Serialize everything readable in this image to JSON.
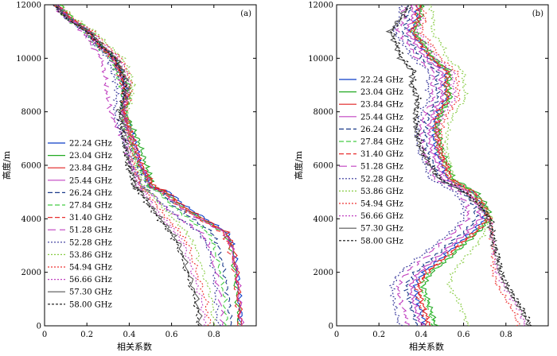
{
  "chart_data": [
    {
      "type": "line",
      "panel_label": "(a)",
      "xlabel": "相关系数",
      "ylabel": "高度/m",
      "xlim": [
        0,
        1
      ],
      "ylim": [
        0,
        12000
      ],
      "xticks": [
        0,
        0.2,
        0.4,
        0.6,
        0.8
      ],
      "yticks": [
        0,
        2000,
        4000,
        6000,
        8000,
        10000,
        12000
      ],
      "grid": false,
      "legend_position": "left-middle",
      "y": [
        0,
        1000,
        2000,
        3000,
        3500,
        4000,
        4500,
        5000,
        5200,
        5600,
        6000,
        6500,
        7000,
        7500,
        8000,
        8500,
        9000,
        9500,
        10000,
        10500,
        11000,
        11500,
        12000
      ],
      "series": [
        {
          "name": "22.24 GHz",
          "color": "#0a3cc8",
          "dash": "solid",
          "values": [
            0.93,
            0.92,
            0.91,
            0.89,
            0.86,
            0.76,
            0.66,
            0.59,
            0.5,
            0.48,
            0.45,
            0.44,
            0.42,
            0.4,
            0.37,
            0.38,
            0.38,
            0.36,
            0.33,
            0.26,
            0.21,
            0.12,
            0.06
          ]
        },
        {
          "name": "23.04 GHz",
          "color": "#22aa22",
          "dash": "solid",
          "values": [
            0.92,
            0.91,
            0.9,
            0.88,
            0.85,
            0.74,
            0.64,
            0.57,
            0.51,
            0.5,
            0.48,
            0.46,
            0.44,
            0.41,
            0.38,
            0.4,
            0.4,
            0.37,
            0.34,
            0.27,
            0.22,
            0.13,
            0.07
          ]
        },
        {
          "name": "23.84 GHz",
          "color": "#e02020",
          "dash": "solid",
          "values": [
            0.93,
            0.92,
            0.91,
            0.89,
            0.86,
            0.75,
            0.65,
            0.58,
            0.52,
            0.49,
            0.46,
            0.44,
            0.42,
            0.4,
            0.37,
            0.39,
            0.38,
            0.36,
            0.33,
            0.26,
            0.21,
            0.12,
            0.06
          ]
        },
        {
          "name": "25.44 GHz",
          "color": "#c040c0",
          "dash": "solid",
          "values": [
            0.93,
            0.92,
            0.91,
            0.88,
            0.85,
            0.73,
            0.63,
            0.56,
            0.5,
            0.48,
            0.45,
            0.43,
            0.41,
            0.39,
            0.37,
            0.38,
            0.37,
            0.35,
            0.32,
            0.25,
            0.2,
            0.11,
            0.05
          ]
        },
        {
          "name": "26.24 GHz",
          "color": "#1a3a8a",
          "dash": "6,3",
          "values": [
            0.88,
            0.87,
            0.85,
            0.82,
            0.79,
            0.7,
            0.61,
            0.55,
            0.49,
            0.47,
            0.44,
            0.42,
            0.4,
            0.38,
            0.36,
            0.37,
            0.37,
            0.35,
            0.32,
            0.25,
            0.2,
            0.11,
            0.05
          ]
        },
        {
          "name": "27.84 GHz",
          "color": "#44cc44",
          "dash": "6,3",
          "values": [
            0.86,
            0.85,
            0.83,
            0.8,
            0.77,
            0.68,
            0.6,
            0.54,
            0.49,
            0.47,
            0.44,
            0.42,
            0.4,
            0.38,
            0.36,
            0.37,
            0.36,
            0.34,
            0.31,
            0.24,
            0.19,
            0.1,
            0.05
          ]
        },
        {
          "name": "31.40 GHz",
          "color": "#e83030",
          "dash": "6,3",
          "values": [
            0.92,
            0.91,
            0.9,
            0.87,
            0.84,
            0.73,
            0.63,
            0.56,
            0.5,
            0.48,
            0.45,
            0.43,
            0.41,
            0.39,
            0.37,
            0.38,
            0.37,
            0.35,
            0.32,
            0.25,
            0.2,
            0.11,
            0.05
          ]
        },
        {
          "name": "51.28 GHz",
          "color": "#c040c0",
          "dash": "10,5",
          "values": [
            0.84,
            0.83,
            0.81,
            0.78,
            0.74,
            0.64,
            0.56,
            0.5,
            0.46,
            0.44,
            0.41,
            0.39,
            0.37,
            0.34,
            0.31,
            0.3,
            0.29,
            0.28,
            0.27,
            0.22,
            0.18,
            0.1,
            0.04
          ]
        },
        {
          "name": "52.28 GHz",
          "color": "#333399",
          "dash": "2,2",
          "values": [
            0.82,
            0.81,
            0.8,
            0.77,
            0.73,
            0.64,
            0.56,
            0.5,
            0.46,
            0.44,
            0.41,
            0.39,
            0.37,
            0.35,
            0.33,
            0.34,
            0.34,
            0.32,
            0.3,
            0.24,
            0.19,
            0.1,
            0.05
          ]
        },
        {
          "name": "53.86 GHz",
          "color": "#88cc44",
          "dash": "2,2",
          "values": [
            0.8,
            0.79,
            0.75,
            0.71,
            0.67,
            0.61,
            0.55,
            0.5,
            0.46,
            0.45,
            0.43,
            0.42,
            0.41,
            0.4,
            0.39,
            0.41,
            0.42,
            0.4,
            0.37,
            0.3,
            0.24,
            0.14,
            0.08
          ]
        },
        {
          "name": "54.94 GHz",
          "color": "#ee3333",
          "dash": "2,2",
          "values": [
            0.78,
            0.76,
            0.72,
            0.68,
            0.64,
            0.58,
            0.53,
            0.48,
            0.45,
            0.44,
            0.42,
            0.41,
            0.4,
            0.39,
            0.38,
            0.4,
            0.41,
            0.39,
            0.36,
            0.29,
            0.23,
            0.13,
            0.07
          ]
        },
        {
          "name": "56.66 GHz",
          "color": "#c040c0",
          "dash": "2,2",
          "values": [
            0.76,
            0.74,
            0.7,
            0.66,
            0.62,
            0.56,
            0.51,
            0.47,
            0.44,
            0.43,
            0.41,
            0.4,
            0.39,
            0.38,
            0.37,
            0.39,
            0.4,
            0.38,
            0.35,
            0.28,
            0.22,
            0.12,
            0.06
          ]
        },
        {
          "name": "57.30 GHz",
          "color": "#555555",
          "dash": "solid",
          "values": [
            0.74,
            0.72,
            0.68,
            0.64,
            0.6,
            0.55,
            0.5,
            0.46,
            0.43,
            0.42,
            0.4,
            0.39,
            0.38,
            0.37,
            0.36,
            0.38,
            0.39,
            0.37,
            0.34,
            0.27,
            0.21,
            0.11,
            0.05
          ]
        },
        {
          "name": "58.00 GHz",
          "color": "#111111",
          "dash": "3,2",
          "values": [
            0.73,
            0.71,
            0.67,
            0.63,
            0.59,
            0.54,
            0.49,
            0.45,
            0.42,
            0.41,
            0.39,
            0.38,
            0.37,
            0.36,
            0.35,
            0.37,
            0.38,
            0.36,
            0.33,
            0.26,
            0.2,
            0.1,
            0.04
          ]
        }
      ]
    },
    {
      "type": "line",
      "panel_label": "(b)",
      "xlabel": "相关系数",
      "ylabel": "高度/m",
      "xlim": [
        0,
        1
      ],
      "ylim": [
        0,
        12000
      ],
      "xticks": [
        0,
        0.2,
        0.4,
        0.6,
        0.8
      ],
      "yticks": [
        0,
        2000,
        4000,
        6000,
        8000,
        10000,
        12000
      ],
      "grid": false,
      "legend_position": "left-middle",
      "y": [
        0,
        500,
        1000,
        1500,
        2000,
        2500,
        3000,
        3500,
        4000,
        4500,
        5000,
        5500,
        6000,
        6500,
        7000,
        7500,
        8000,
        8500,
        9000,
        9500,
        10000,
        10500,
        11000,
        11500,
        12000
      ],
      "series": [
        {
          "name": "22.24 GHz",
          "color": "#0a3cc8",
          "dash": "solid",
          "values": [
            0.42,
            0.4,
            0.38,
            0.37,
            0.41,
            0.49,
            0.56,
            0.64,
            0.7,
            0.69,
            0.64,
            0.52,
            0.5,
            0.47,
            0.46,
            0.46,
            0.48,
            0.52,
            0.51,
            0.52,
            0.44,
            0.4,
            0.35,
            0.38,
            0.38
          ]
        },
        {
          "name": "23.04 GHz",
          "color": "#22aa22",
          "dash": "solid",
          "values": [
            0.47,
            0.45,
            0.43,
            0.41,
            0.45,
            0.53,
            0.6,
            0.67,
            0.73,
            0.71,
            0.66,
            0.55,
            0.53,
            0.5,
            0.49,
            0.48,
            0.5,
            0.54,
            0.53,
            0.54,
            0.46,
            0.42,
            0.37,
            0.4,
            0.4
          ]
        },
        {
          "name": "23.84 GHz",
          "color": "#e02020",
          "dash": "solid",
          "values": [
            0.44,
            0.42,
            0.4,
            0.39,
            0.43,
            0.51,
            0.58,
            0.66,
            0.72,
            0.7,
            0.65,
            0.54,
            0.52,
            0.49,
            0.48,
            0.47,
            0.49,
            0.53,
            0.52,
            0.53,
            0.45,
            0.41,
            0.36,
            0.39,
            0.39
          ]
        },
        {
          "name": "25.44 GHz",
          "color": "#c040c0",
          "dash": "solid",
          "values": [
            0.4,
            0.38,
            0.36,
            0.35,
            0.39,
            0.47,
            0.54,
            0.62,
            0.68,
            0.67,
            0.62,
            0.5,
            0.48,
            0.45,
            0.44,
            0.44,
            0.46,
            0.5,
            0.49,
            0.5,
            0.42,
            0.38,
            0.33,
            0.36,
            0.36
          ]
        },
        {
          "name": "26.24 GHz",
          "color": "#1a3a8a",
          "dash": "6,3",
          "values": [
            0.38,
            0.36,
            0.34,
            0.33,
            0.37,
            0.45,
            0.52,
            0.6,
            0.66,
            0.65,
            0.6,
            0.48,
            0.46,
            0.43,
            0.42,
            0.42,
            0.44,
            0.48,
            0.47,
            0.48,
            0.4,
            0.36,
            0.31,
            0.34,
            0.34
          ]
        },
        {
          "name": "27.84 GHz",
          "color": "#44cc44",
          "dash": "6,3",
          "values": [
            0.46,
            0.44,
            0.42,
            0.4,
            0.44,
            0.52,
            0.59,
            0.66,
            0.71,
            0.69,
            0.64,
            0.53,
            0.51,
            0.48,
            0.47,
            0.47,
            0.49,
            0.53,
            0.52,
            0.53,
            0.45,
            0.41,
            0.36,
            0.39,
            0.39
          ]
        },
        {
          "name": "31.40 GHz",
          "color": "#e83030",
          "dash": "6,3",
          "values": [
            0.43,
            0.41,
            0.39,
            0.38,
            0.42,
            0.5,
            0.57,
            0.65,
            0.71,
            0.69,
            0.64,
            0.53,
            0.51,
            0.48,
            0.47,
            0.46,
            0.48,
            0.52,
            0.51,
            0.52,
            0.44,
            0.4,
            0.35,
            0.38,
            0.38
          ]
        },
        {
          "name": "51.28 GHz",
          "color": "#c040c0",
          "dash": "10,5",
          "values": [
            0.34,
            0.32,
            0.3,
            0.29,
            0.33,
            0.41,
            0.48,
            0.56,
            0.62,
            0.62,
            0.58,
            0.46,
            0.44,
            0.41,
            0.4,
            0.4,
            0.42,
            0.46,
            0.45,
            0.46,
            0.38,
            0.34,
            0.29,
            0.32,
            0.32
          ]
        },
        {
          "name": "52.28 GHz",
          "color": "#333399",
          "dash": "2,2",
          "values": [
            0.3,
            0.28,
            0.27,
            0.26,
            0.3,
            0.38,
            0.46,
            0.54,
            0.6,
            0.6,
            0.56,
            0.44,
            0.42,
            0.39,
            0.38,
            0.38,
            0.4,
            0.44,
            0.43,
            0.44,
            0.36,
            0.32,
            0.27,
            0.3,
            0.3
          ]
        },
        {
          "name": "53.86 GHz",
          "color": "#88cc44",
          "dash": "2,2",
          "values": [
            0.62,
            0.6,
            0.57,
            0.53,
            0.55,
            0.6,
            0.66,
            0.7,
            0.73,
            0.7,
            0.64,
            0.55,
            0.54,
            0.52,
            0.52,
            0.53,
            0.56,
            0.61,
            0.6,
            0.6,
            0.52,
            0.5,
            0.45,
            0.46,
            0.44
          ]
        },
        {
          "name": "54.94 GHz",
          "color": "#ee3333",
          "dash": "2,2",
          "values": [
            0.86,
            0.84,
            0.8,
            0.76,
            0.74,
            0.74,
            0.74,
            0.73,
            0.73,
            0.68,
            0.62,
            0.53,
            0.52,
            0.5,
            0.49,
            0.5,
            0.53,
            0.58,
            0.57,
            0.57,
            0.49,
            0.45,
            0.4,
            0.42,
            0.4
          ]
        },
        {
          "name": "56.66 GHz",
          "color": "#c040c0",
          "dash": "2,2",
          "values": [
            0.89,
            0.87,
            0.83,
            0.79,
            0.76,
            0.75,
            0.74,
            0.73,
            0.72,
            0.67,
            0.61,
            0.52,
            0.5,
            0.48,
            0.47,
            0.48,
            0.51,
            0.56,
            0.55,
            0.55,
            0.47,
            0.43,
            0.38,
            0.4,
            0.38
          ]
        },
        {
          "name": "57.30 GHz",
          "color": "#555555",
          "dash": "solid",
          "values": [
            0.91,
            0.88,
            0.84,
            0.8,
            0.77,
            0.76,
            0.74,
            0.73,
            0.72,
            0.67,
            0.6,
            0.48,
            0.44,
            0.4,
            0.38,
            0.37,
            0.37,
            0.38,
            0.35,
            0.36,
            0.3,
            0.28,
            0.25,
            0.3,
            0.34
          ]
        },
        {
          "name": "58.00 GHz",
          "color": "#111111",
          "dash": "3,2",
          "values": [
            0.92,
            0.89,
            0.85,
            0.81,
            0.78,
            0.77,
            0.75,
            0.74,
            0.73,
            0.68,
            0.61,
            0.49,
            0.45,
            0.41,
            0.39,
            0.38,
            0.38,
            0.39,
            0.36,
            0.37,
            0.31,
            0.29,
            0.26,
            0.31,
            0.35
          ]
        }
      ]
    }
  ]
}
